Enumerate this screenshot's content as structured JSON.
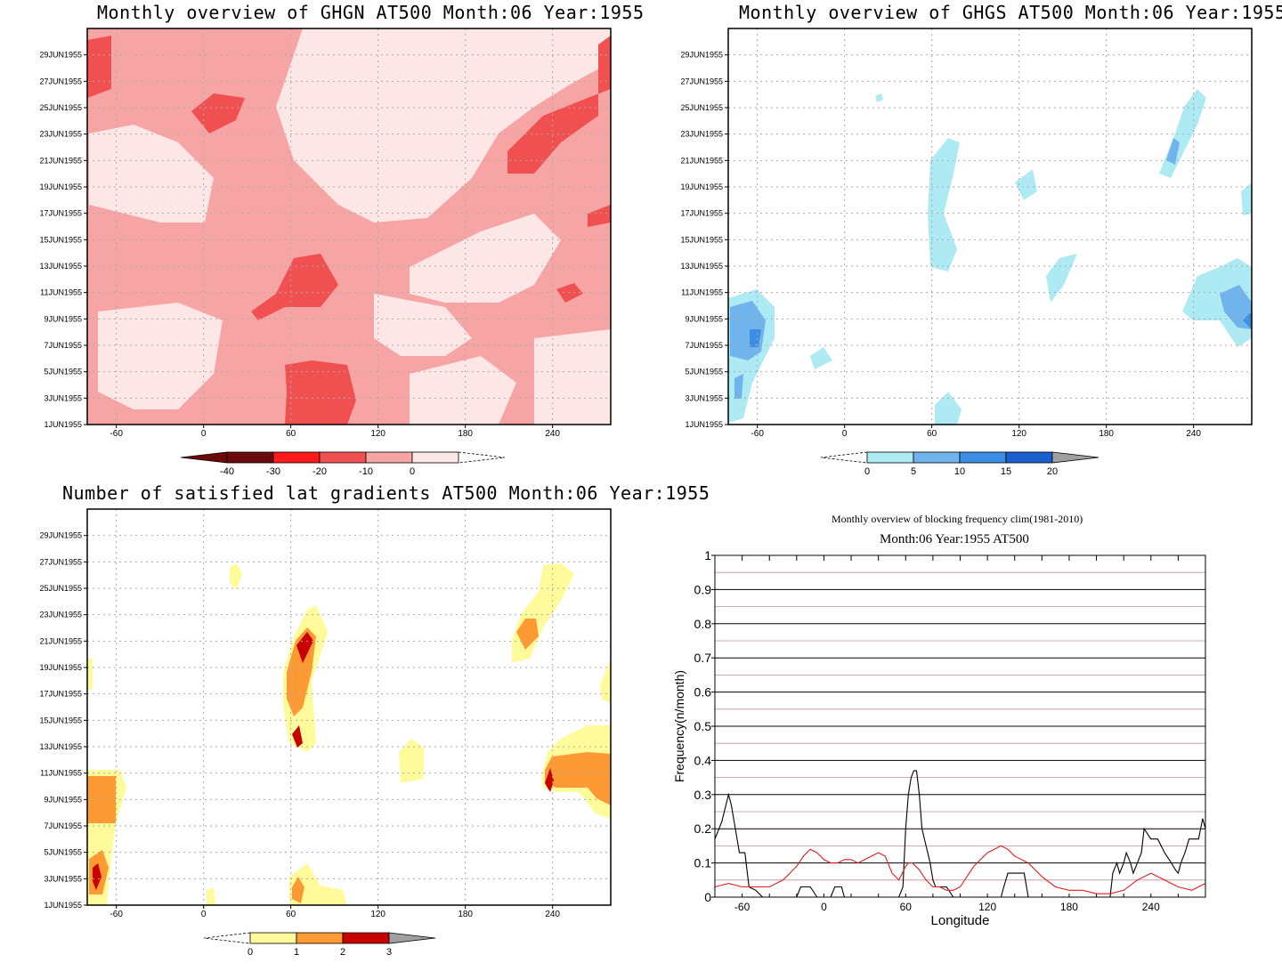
{
  "chart_data": [
    {
      "type": "heatmap",
      "title": "Monthly overview of GHGN AT500 Month:06 Year:1955",
      "y_ticks": [
        "1JUN1955",
        "3JUN1955",
        "5JUN1955",
        "7JUN1955",
        "9JUN1955",
        "11JUN1955",
        "13JUN1955",
        "15JUN1955",
        "17JUN1955",
        "19JUN1955",
        "21JUN1955",
        "23JUN1955",
        "25JUN1955",
        "27JUN1955",
        "29JUN1955"
      ],
      "x_ticks": [
        "-60",
        "0",
        "60",
        "120",
        "180",
        "240"
      ],
      "x_tick_values": [
        -60,
        0,
        60,
        120,
        180,
        240
      ],
      "xlim": [
        -80,
        280
      ],
      "colorbar": {
        "labels": [
          "-40",
          "-30",
          "-20",
          "-10",
          "0"
        ],
        "colors": [
          "#6b0a0a",
          "#ff1a1a",
          "#f05050",
          "#f7a4a4",
          "#fde6e6"
        ]
      },
      "grid": true
    },
    {
      "type": "heatmap",
      "title": "Monthly overview of GHGS AT500 Month:06 Year:1955",
      "y_ticks": [
        "1JUN1955",
        "3JUN1955",
        "5JUN1955",
        "7JUN1955",
        "9JUN1955",
        "11JUN1955",
        "13JUN1955",
        "15JUN1955",
        "17JUN1955",
        "19JUN1955",
        "21JUN1955",
        "23JUN1955",
        "25JUN1955",
        "27JUN1955",
        "29JUN1955"
      ],
      "x_ticks": [
        "-60",
        "0",
        "60",
        "120",
        "180",
        "240"
      ],
      "x_tick_values": [
        -60,
        0,
        60,
        120,
        180,
        240
      ],
      "xlim": [
        -80,
        280
      ],
      "colorbar": {
        "labels": [
          "0",
          "5",
          "10",
          "15",
          "20"
        ],
        "colors": [
          "#aeeaf4",
          "#6fb4ec",
          "#3a8ee4",
          "#1a5fd0",
          "#a0a0a0"
        ]
      },
      "grid": true
    },
    {
      "type": "heatmap",
      "title": "Number of satisfied lat gradients AT500 Month:06 Year:1955",
      "y_ticks": [
        "1JUN1955",
        "3JUN1955",
        "5JUN1955",
        "7JUN1955",
        "9JUN1955",
        "11JUN1955",
        "13JUN1955",
        "15JUN1955",
        "17JUN1955",
        "19JUN1955",
        "21JUN1955",
        "23JUN1955",
        "25JUN1955",
        "27JUN1955",
        "29JUN1955"
      ],
      "x_ticks": [
        "-60",
        "0",
        "60",
        "120",
        "180",
        "240"
      ],
      "x_tick_values": [
        -60,
        0,
        60,
        120,
        180,
        240
      ],
      "xlim": [
        -80,
        280
      ],
      "colorbar": {
        "labels": [
          "0",
          "1",
          "2",
          "3"
        ],
        "colors": [
          "#fffb9a",
          "#fd9a33",
          "#c80000",
          "#a0a0a0"
        ]
      },
      "grid": true
    },
    {
      "type": "line",
      "title": "Monthly overview of blocking frequency clim(1981-2010)",
      "subtitle": "Month:06 Year:1955  AT500",
      "xlabel": "Longitude",
      "ylabel": "Frequency(n/month)",
      "xlim": [
        -80,
        280
      ],
      "ylim": [
        0,
        1
      ],
      "x_ticks": [
        "-60",
        "0",
        "60",
        "120",
        "180",
        "240"
      ],
      "x_tick_values": [
        -60,
        0,
        60,
        120,
        180,
        240
      ],
      "y_ticks": [
        "0",
        "0.1",
        "0.2",
        "0.3",
        "0.4",
        "0.5",
        "0.6",
        "0.7",
        "0.8",
        "0.9",
        "1"
      ],
      "y_tick_values": [
        0,
        0.1,
        0.2,
        0.3,
        0.4,
        0.5,
        0.6,
        0.7,
        0.8,
        0.9,
        1
      ],
      "series": [
        {
          "color": "#000000",
          "x": [
            -80,
            -75,
            -70,
            -68,
            -65,
            -62,
            -58,
            -55,
            -50,
            -45,
            -40,
            -20,
            -17,
            -13,
            -10,
            -5,
            0,
            5,
            8,
            10,
            13,
            15,
            18,
            20,
            25,
            30,
            40,
            55,
            58,
            60,
            62,
            64,
            66,
            68,
            70,
            72,
            75,
            78,
            80,
            82,
            85,
            88,
            90,
            95,
            100,
            105,
            110,
            120,
            130,
            132,
            135,
            140,
            145,
            147,
            150,
            160,
            200,
            210,
            212,
            215,
            217,
            220,
            222,
            225,
            227,
            230,
            233,
            235,
            240,
            243,
            245,
            250,
            255,
            258,
            260,
            262,
            265,
            268,
            270,
            275,
            278,
            280
          ],
          "y": [
            0.17,
            0.22,
            0.3,
            0.27,
            0.2,
            0.13,
            0.13,
            0.03,
            0.02,
            0.0,
            0.0,
            0.0,
            0.03,
            0.03,
            0.03,
            0.0,
            0.0,
            0.0,
            0.03,
            0.03,
            0.03,
            0.0,
            0.0,
            0.0,
            0.0,
            0.0,
            0.0,
            0.0,
            0.03,
            0.2,
            0.3,
            0.35,
            0.37,
            0.37,
            0.3,
            0.2,
            0.15,
            0.1,
            0.05,
            0.03,
            0.03,
            0.03,
            0.03,
            0.0,
            0.0,
            0.0,
            0.0,
            0.0,
            0.0,
            0.03,
            0.07,
            0.07,
            0.07,
            0.07,
            0.0,
            0.0,
            0.0,
            0.0,
            0.07,
            0.1,
            0.07,
            0.1,
            0.13,
            0.1,
            0.07,
            0.1,
            0.13,
            0.2,
            0.17,
            0.17,
            0.17,
            0.13,
            0.1,
            0.08,
            0.07,
            0.1,
            0.13,
            0.17,
            0.17,
            0.17,
            0.23,
            0.2
          ]
        },
        {
          "color": "#e02020",
          "x": [
            -80,
            -70,
            -60,
            -50,
            -40,
            -30,
            -25,
            -20,
            -15,
            -10,
            -5,
            0,
            5,
            10,
            15,
            20,
            25,
            30,
            35,
            40,
            45,
            50,
            55,
            60,
            62,
            65,
            70,
            75,
            80,
            85,
            90,
            95,
            100,
            110,
            120,
            125,
            130,
            135,
            140,
            150,
            160,
            170,
            180,
            190,
            200,
            210,
            220,
            230,
            240,
            250,
            260,
            270,
            280
          ],
          "y": [
            0.03,
            0.04,
            0.03,
            0.03,
            0.03,
            0.05,
            0.07,
            0.09,
            0.12,
            0.14,
            0.13,
            0.11,
            0.1,
            0.1,
            0.11,
            0.11,
            0.1,
            0.11,
            0.12,
            0.13,
            0.12,
            0.07,
            0.05,
            0.09,
            0.1,
            0.1,
            0.08,
            0.05,
            0.03,
            0.03,
            0.02,
            0.02,
            0.03,
            0.09,
            0.13,
            0.14,
            0.15,
            0.14,
            0.12,
            0.1,
            0.06,
            0.03,
            0.02,
            0.02,
            0.01,
            0.01,
            0.02,
            0.05,
            0.07,
            0.05,
            0.03,
            0.02,
            0.04
          ]
        }
      ],
      "grid": true
    }
  ]
}
